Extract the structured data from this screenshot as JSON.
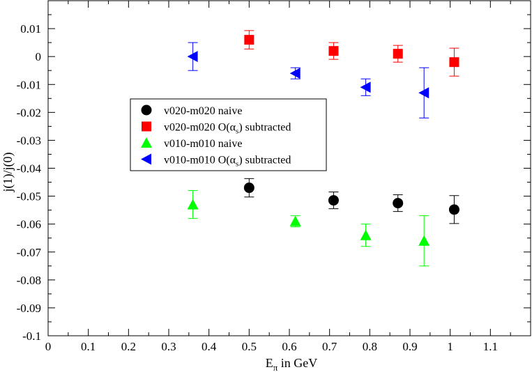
{
  "chart_data": {
    "type": "scatter",
    "title": "",
    "xlabel": {
      "main": "E",
      "sub": "π",
      "rest": " in GeV"
    },
    "ylabel": "j(1)/j(0)",
    "xlim": [
      0,
      1.2
    ],
    "ylim": [
      -0.1,
      0.02
    ],
    "x_ticks": [
      0,
      0.1,
      0.2,
      0.3,
      0.4,
      0.5,
      0.6,
      0.7,
      0.8,
      0.9,
      1.0,
      1.1
    ],
    "x_tick_labels": [
      "0",
      "0.1",
      "0.2",
      "0.3",
      "0.4",
      "0.5",
      "0.6",
      "0.7",
      "0.8",
      "0.9",
      "1",
      "1.1"
    ],
    "y_ticks": [
      -0.1,
      -0.09,
      -0.08,
      -0.07,
      -0.06,
      -0.05,
      -0.04,
      -0.03,
      -0.02,
      -0.01,
      0,
      0.01
    ],
    "y_tick_labels": [
      "-0.1",
      "-0.09",
      "-0.08",
      "-0.07",
      "-0.06",
      "-0.05",
      "-0.04",
      "-0.03",
      "-0.02",
      "-0.01",
      "0",
      "0.01"
    ],
    "grid": false,
    "legend_position": "center-left",
    "series": [
      {
        "name": "v020-m020 naive",
        "legend_parts": {
          "pre": "v020-m020 naive",
          "greek": "",
          "sub": "",
          "post": ""
        },
        "marker": "circle",
        "color": "#000000",
        "points": [
          {
            "x": 0.5,
            "y": -0.047,
            "err": 0.0033
          },
          {
            "x": 0.71,
            "y": -0.0515,
            "err": 0.003
          },
          {
            "x": 0.87,
            "y": -0.0525,
            "err": 0.003
          },
          {
            "x": 1.01,
            "y": -0.0548,
            "err": 0.005
          }
        ]
      },
      {
        "name": "v020-m020 O(αs) subtracted",
        "legend_parts": {
          "pre": "v020-m020 O(",
          "greek": "α",
          "sub": "s",
          "post": ") subtracted"
        },
        "marker": "square",
        "color": "#ff0000",
        "points": [
          {
            "x": 0.5,
            "y": 0.006,
            "err": 0.0033
          },
          {
            "x": 0.71,
            "y": 0.002,
            "err": 0.003
          },
          {
            "x": 0.87,
            "y": 0.001,
            "err": 0.003
          },
          {
            "x": 1.01,
            "y": -0.002,
            "err": 0.005
          }
        ]
      },
      {
        "name": "v010-m010 naive",
        "legend_parts": {
          "pre": "v010-m010 naive",
          "greek": "",
          "sub": "",
          "post": ""
        },
        "marker": "triangle-up",
        "color": "#00ff00",
        "points": [
          {
            "x": 0.36,
            "y": -0.053,
            "err": 0.005
          },
          {
            "x": 0.615,
            "y": -0.059,
            "err": 0.002
          },
          {
            "x": 0.79,
            "y": -0.064,
            "err": 0.004
          },
          {
            "x": 0.935,
            "y": -0.066,
            "err": 0.009
          }
        ]
      },
      {
        "name": "v010-m010 O(αs) subtracted",
        "legend_parts": {
          "pre": "v010-m010 O(",
          "greek": "α",
          "sub": "s",
          "post": ") subtracted"
        },
        "marker": "triangle-left",
        "color": "#0000ff",
        "points": [
          {
            "x": 0.36,
            "y": 0.0,
            "err": 0.005
          },
          {
            "x": 0.615,
            "y": -0.006,
            "err": 0.002
          },
          {
            "x": 0.79,
            "y": -0.011,
            "err": 0.003
          },
          {
            "x": 0.935,
            "y": -0.013,
            "err": 0.009
          }
        ]
      }
    ]
  }
}
